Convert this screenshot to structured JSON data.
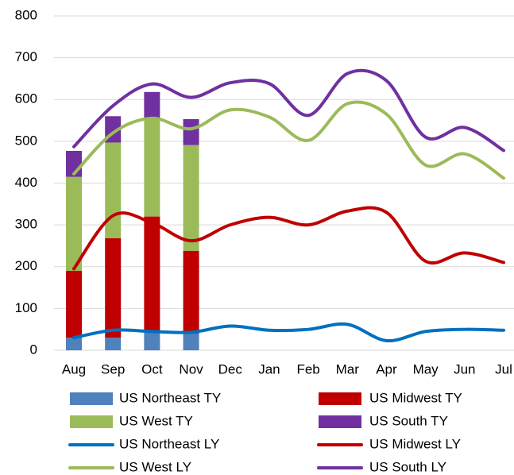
{
  "chart_data": {
    "type": "bar-line",
    "categories": [
      "Aug",
      "Sep",
      "Oct",
      "Nov",
      "Dec",
      "Jan",
      "Feb",
      "Mar",
      "Apr",
      "May",
      "Jun",
      "Jul"
    ],
    "ylim": [
      0,
      800
    ],
    "yticks": [
      0,
      100,
      200,
      300,
      400,
      500,
      600,
      700,
      800
    ],
    "grid": true,
    "legend": "bottom",
    "series": [
      {
        "name": "US Northeast TY",
        "type": "bar",
        "color": "#4f81bd",
        "values": [
          30,
          30,
          45,
          40,
          null,
          null,
          null,
          null,
          null,
          null,
          null,
          null
        ]
      },
      {
        "name": "US Midwest TY",
        "type": "bar",
        "color": "#c00000",
        "values": [
          160,
          238,
          275,
          198,
          null,
          null,
          null,
          null,
          null,
          null,
          null,
          null
        ]
      },
      {
        "name": "US West TY",
        "type": "bar",
        "color": "#9bbb59",
        "values": [
          225,
          229,
          235,
          253,
          null,
          null,
          null,
          null,
          null,
          null,
          null,
          null
        ]
      },
      {
        "name": "US South TY",
        "type": "bar",
        "color": "#7030a0",
        "values": [
          62,
          63,
          63,
          62,
          null,
          null,
          null,
          null,
          null,
          null,
          null,
          null
        ]
      },
      {
        "name": "US Northeast LY",
        "type": "line",
        "color": "#0070c0",
        "values": [
          30,
          48,
          45,
          43,
          58,
          48,
          50,
          62,
          23,
          45,
          50,
          48
        ]
      },
      {
        "name": "US Midwest LY",
        "type": "line",
        "color": "#c00000",
        "values": [
          195,
          322,
          305,
          262,
          300,
          318,
          300,
          333,
          330,
          213,
          233,
          210
        ]
      },
      {
        "name": "US West LY",
        "type": "line",
        "color": "#9bbb59",
        "values": [
          422,
          520,
          555,
          530,
          575,
          558,
          502,
          590,
          565,
          443,
          470,
          412
        ]
      },
      {
        "name": "US South LY",
        "type": "line",
        "color": "#7030a0",
        "values": [
          487,
          585,
          637,
          605,
          640,
          638,
          562,
          662,
          645,
          510,
          533,
          478
        ]
      }
    ]
  }
}
